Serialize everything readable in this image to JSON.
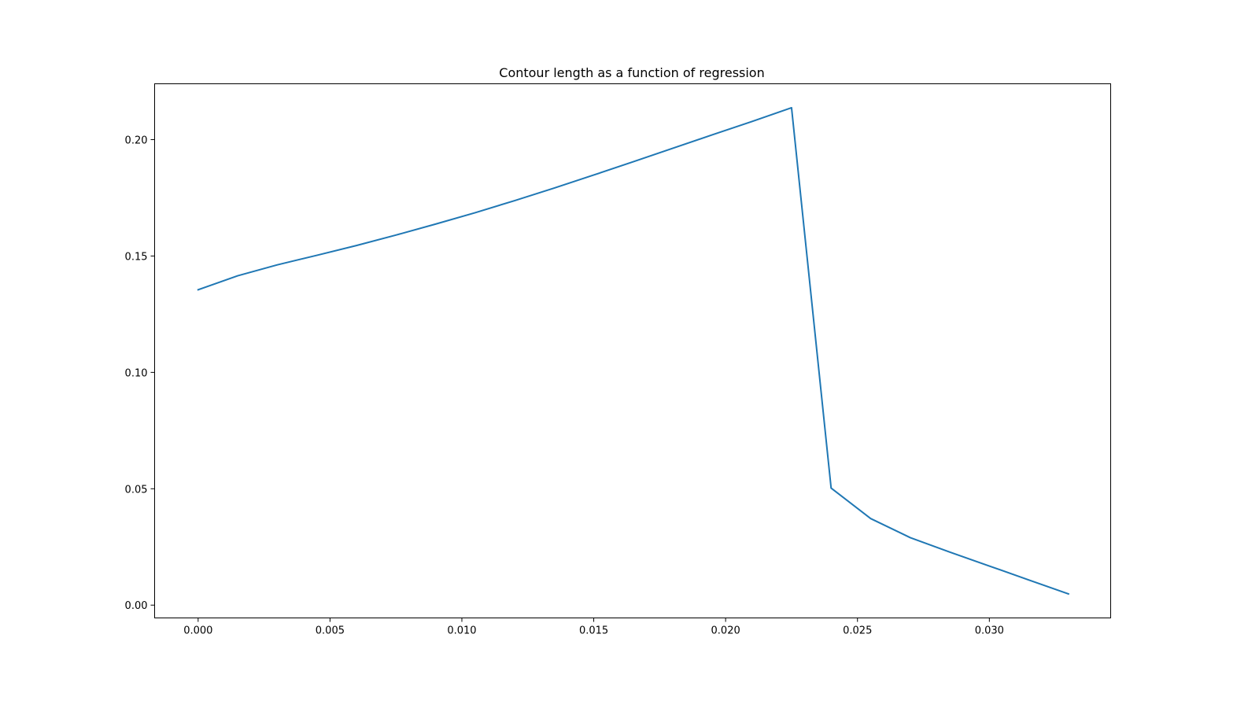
{
  "chart_data": {
    "type": "line",
    "title": "Contour length as a function of regression",
    "xlabel": "",
    "ylabel": "",
    "xlim": [
      -0.00165,
      0.0346
    ],
    "ylim": [
      -0.0055,
      0.224
    ],
    "x_ticks": [
      0.0,
      0.005,
      0.01,
      0.015,
      0.02,
      0.025,
      0.03
    ],
    "x_tick_labels": [
      "0.000",
      "0.005",
      "0.010",
      "0.015",
      "0.020",
      "0.025",
      "0.030"
    ],
    "y_ticks": [
      0.0,
      0.05,
      0.1,
      0.15,
      0.2
    ],
    "y_tick_labels": [
      "0.00",
      "0.05",
      "0.10",
      "0.15",
      "0.20"
    ],
    "grid": false,
    "series": [
      {
        "color": "#1f77b4",
        "x": [
          0.0,
          0.0015,
          0.003,
          0.0045,
          0.006,
          0.0075,
          0.009,
          0.0105,
          0.012,
          0.0135,
          0.015,
          0.0165,
          0.018,
          0.0195,
          0.021,
          0.0225,
          0.024,
          0.0255,
          0.027,
          0.0285,
          0.03,
          0.0315,
          0.033
        ],
        "y": [
          0.1355,
          0.1415,
          0.1462,
          0.1503,
          0.1545,
          0.159,
          0.1637,
          0.1686,
          0.1738,
          0.1792,
          0.1848,
          0.1905,
          0.1963,
          0.2021,
          0.2078,
          0.2137,
          0.0503,
          0.0372,
          0.029,
          0.0228,
          0.0168,
          0.0108,
          0.0048
        ]
      }
    ]
  }
}
